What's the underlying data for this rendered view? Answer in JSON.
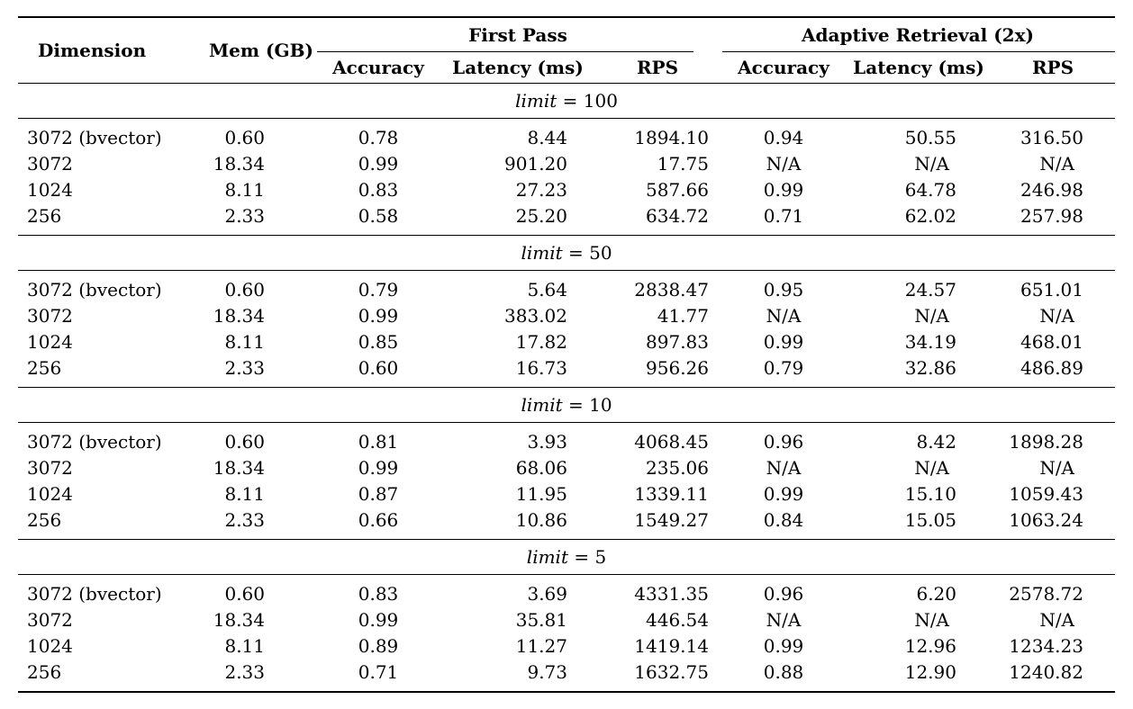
{
  "table": {
    "columns": {
      "dimension": "Dimension",
      "mem": "Mem (GB)",
      "first_pass": "First Pass",
      "adaptive": "Adaptive Retrieval (2x)",
      "sub": [
        "Accuracy",
        "Latency (ms)",
        "RPS",
        "Accuracy",
        "Latency (ms)",
        "RPS"
      ]
    },
    "sections": [
      {
        "limit_label": "limit",
        "limit_eq": "=",
        "limit_value": "100",
        "rows": [
          {
            "cells": [
              "3072 (bvector)",
              "0.60",
              "0.78",
              "8.44",
              "1894.10",
              "0.94",
              "50.55",
              "316.50"
            ]
          },
          {
            "cells": [
              "3072",
              "18.34",
              "0.99",
              "901.20",
              "17.75",
              "N/A",
              "N/A",
              "N/A"
            ]
          },
          {
            "cells": [
              "1024",
              "8.11",
              "0.83",
              "27.23",
              "587.66",
              "0.99",
              "64.78",
              "246.98"
            ]
          },
          {
            "cells": [
              "256",
              "2.33",
              "0.58",
              "25.20",
              "634.72",
              "0.71",
              "62.02",
              "257.98"
            ]
          }
        ]
      },
      {
        "limit_label": "limit",
        "limit_eq": "=",
        "limit_value": "50",
        "rows": [
          {
            "cells": [
              "3072 (bvector)",
              "0.60",
              "0.79",
              "5.64",
              "2838.47",
              "0.95",
              "24.57",
              "651.01"
            ]
          },
          {
            "cells": [
              "3072",
              "18.34",
              "0.99",
              "383.02",
              "41.77",
              "N/A",
              "N/A",
              "N/A"
            ]
          },
          {
            "cells": [
              "1024",
              "8.11",
              "0.85",
              "17.82",
              "897.83",
              "0.99",
              "34.19",
              "468.01"
            ]
          },
          {
            "cells": [
              "256",
              "2.33",
              "0.60",
              "16.73",
              "956.26",
              "0.79",
              "32.86",
              "486.89"
            ]
          }
        ]
      },
      {
        "limit_label": "limit",
        "limit_eq": "=",
        "limit_value": "10",
        "rows": [
          {
            "cells": [
              "3072 (bvector)",
              "0.60",
              "0.81",
              "3.93",
              "4068.45",
              "0.96",
              "8.42",
              "1898.28"
            ]
          },
          {
            "cells": [
              "3072",
              "18.34",
              "0.99",
              "68.06",
              "235.06",
              "N/A",
              "N/A",
              "N/A"
            ]
          },
          {
            "cells": [
              "1024",
              "8.11",
              "0.87",
              "11.95",
              "1339.11",
              "0.99",
              "15.10",
              "1059.43"
            ]
          },
          {
            "cells": [
              "256",
              "2.33",
              "0.66",
              "10.86",
              "1549.27",
              "0.84",
              "15.05",
              "1063.24"
            ]
          }
        ]
      },
      {
        "limit_label": "limit",
        "limit_eq": "=",
        "limit_value": "5",
        "rows": [
          {
            "cells": [
              "3072 (bvector)",
              "0.60",
              "0.83",
              "3.69",
              "4331.35",
              "0.96",
              "6.20",
              "2578.72"
            ]
          },
          {
            "cells": [
              "3072",
              "18.34",
              "0.99",
              "35.81",
              "446.54",
              "N/A",
              "N/A",
              "N/A"
            ]
          },
          {
            "cells": [
              "1024",
              "8.11",
              "0.89",
              "11.27",
              "1419.14",
              "0.99",
              "12.96",
              "1234.23"
            ]
          },
          {
            "cells": [
              "256",
              "2.33",
              "0.71",
              "9.73",
              "1632.75",
              "0.88",
              "12.90",
              "1240.82"
            ]
          }
        ]
      }
    ]
  }
}
